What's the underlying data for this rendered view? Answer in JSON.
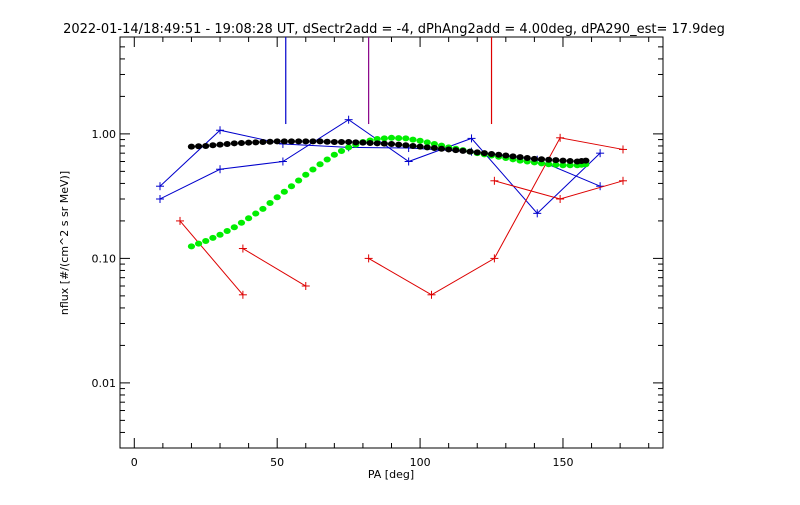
{
  "chart_data": {
    "type": "scatter",
    "title": "2022-01-14/18:49:51 - 19:08:28 UT, dSectr2add = -4, dPhAng2add = 4.00deg, dPA290_est=  17.9deg",
    "xlabel": "PA [deg]",
    "ylabel": "nflux [#/(cm^2 s sr MeV)]",
    "xlim": [
      -5,
      185
    ],
    "ylim": [
      0.003,
      6
    ],
    "yscale": "log",
    "xticks": [
      0,
      50,
      100,
      150
    ],
    "xtick_labels": [
      "0",
      "50",
      "100",
      "150"
    ],
    "yticks": [
      0.01,
      0.1,
      1.0
    ],
    "ytick_labels": [
      "0.01",
      "0.10",
      "1.00"
    ],
    "grid": false,
    "series": [
      {
        "color": "#0000cc",
        "style": "line-plus",
        "x": [
          9,
          30,
          52,
          75,
          96,
          118,
          141,
          163
        ],
        "y": [
          0.3,
          0.52,
          0.6,
          1.3,
          0.6,
          0.92,
          0.23,
          0.7
        ]
      },
      {
        "color": "#0000cc",
        "style": "line-plus",
        "x": [
          9,
          30,
          52,
          75,
          96,
          118,
          141,
          163
        ],
        "y": [
          0.38,
          1.07,
          0.83,
          0.78,
          0.77,
          0.72,
          0.62,
          0.38
        ]
      },
      {
        "color": "#dd0000",
        "style": "line-plus",
        "x": [
          16,
          38
        ],
        "y": [
          0.2,
          0.051
        ]
      },
      {
        "color": "#dd0000",
        "style": "line-plus",
        "x": [
          38,
          60
        ],
        "y": [
          0.12,
          0.06
        ]
      },
      {
        "color": "#dd0000",
        "style": "line-plus",
        "x": [
          82,
          104,
          126,
          149,
          171
        ],
        "y": [
          0.1,
          0.051,
          0.1,
          0.93,
          0.75
        ]
      },
      {
        "color": "#dd0000",
        "style": "line-plus",
        "x": [
          126,
          149,
          171
        ],
        "y": [
          0.42,
          0.3,
          0.42
        ]
      },
      {
        "color": "#00ee00",
        "style": "dots",
        "x": [
          20,
          25,
          30,
          35,
          40,
          45,
          50,
          55,
          60,
          65,
          70,
          75,
          80,
          85,
          90,
          95,
          100,
          105,
          110,
          115,
          120,
          125,
          130,
          135,
          140,
          145,
          150,
          155,
          158
        ],
        "y": [
          0.125,
          0.138,
          0.155,
          0.178,
          0.21,
          0.25,
          0.31,
          0.38,
          0.47,
          0.57,
          0.68,
          0.78,
          0.86,
          0.91,
          0.93,
          0.92,
          0.88,
          0.83,
          0.78,
          0.74,
          0.7,
          0.67,
          0.64,
          0.61,
          0.59,
          0.57,
          0.56,
          0.56,
          0.57
        ]
      },
      {
        "color": "#000000",
        "style": "dots",
        "x": [
          20,
          25,
          30,
          35,
          40,
          45,
          50,
          55,
          60,
          65,
          70,
          75,
          80,
          85,
          90,
          95,
          100,
          105,
          110,
          115,
          120,
          125,
          130,
          135,
          140,
          145,
          150,
          155,
          158
        ],
        "y": [
          0.79,
          0.8,
          0.82,
          0.84,
          0.85,
          0.86,
          0.87,
          0.87,
          0.87,
          0.87,
          0.86,
          0.86,
          0.85,
          0.84,
          0.83,
          0.81,
          0.79,
          0.77,
          0.75,
          0.73,
          0.71,
          0.69,
          0.67,
          0.65,
          0.63,
          0.62,
          0.61,
          0.6,
          0.61
        ]
      }
    ],
    "vlines": [
      {
        "x": 53,
        "color": "#0000cc",
        "y_from": 1.2
      },
      {
        "x": 82,
        "color": "#880088",
        "y_from": 1.2
      },
      {
        "x": 125,
        "color": "#dd0000",
        "y_from": 1.2
      }
    ]
  }
}
